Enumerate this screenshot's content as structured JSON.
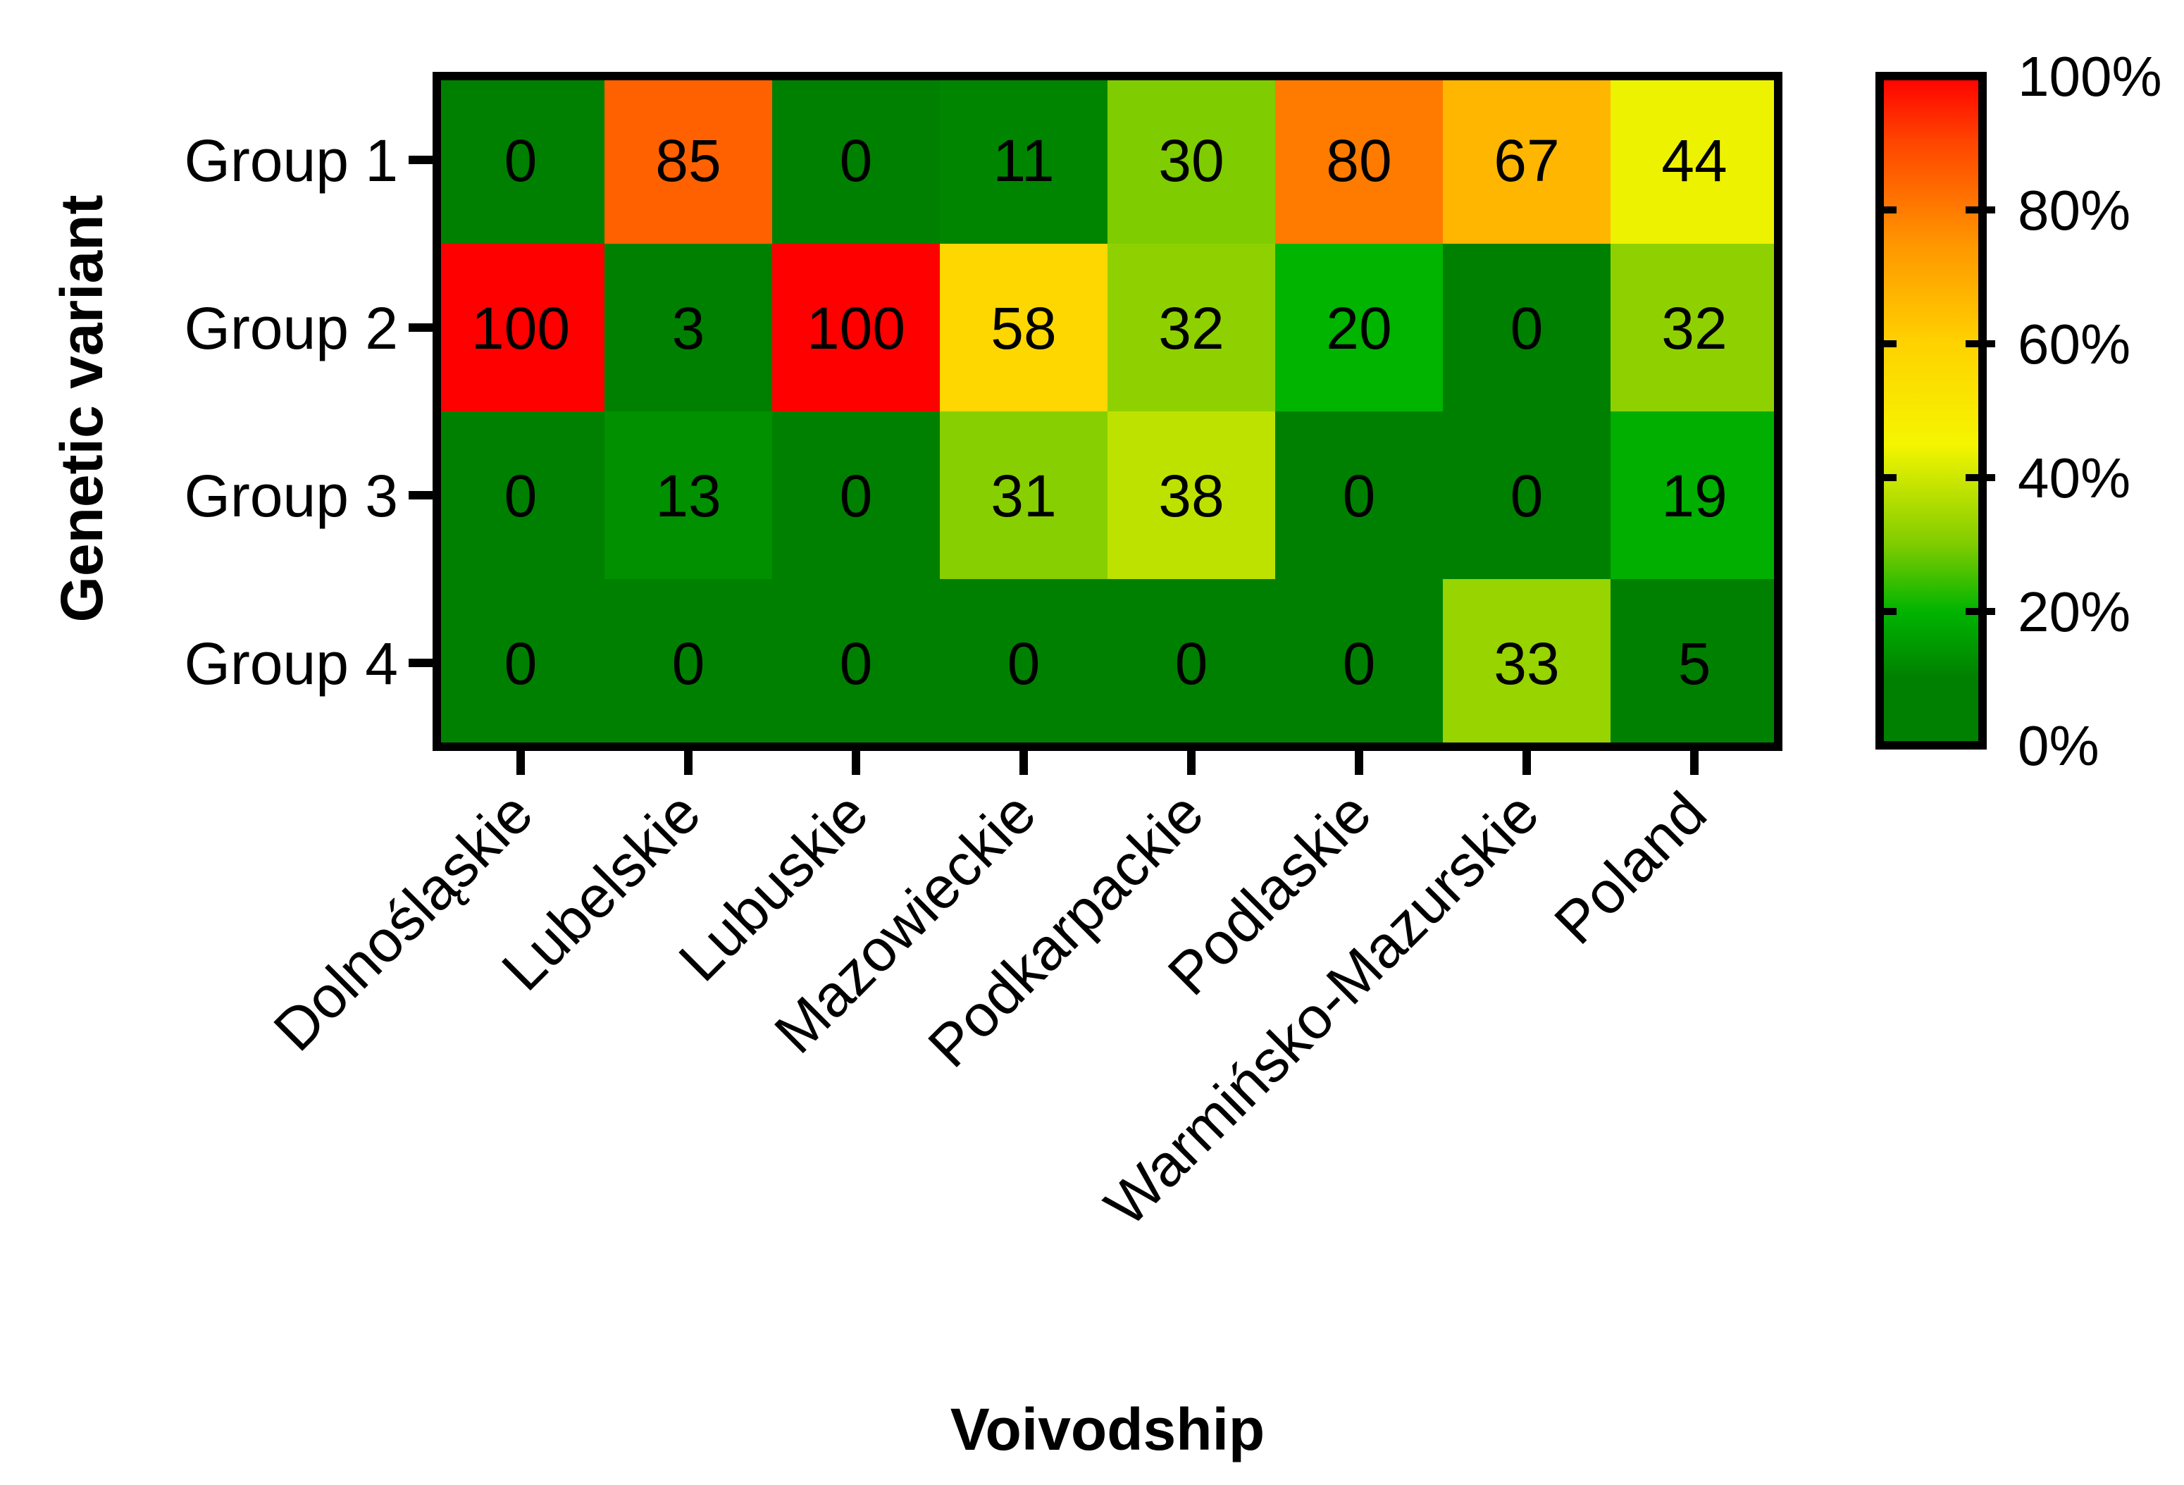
{
  "chart_data": {
    "type": "heatmap",
    "xlabel": "Voivodship",
    "ylabel": "Genetic variant",
    "x_categories": [
      "Dolnośląskie",
      "Lubelskie",
      "Lubuskie",
      "Mazowieckie",
      "Podkarpackie",
      "Podlaskie",
      "Warmińsko-Mazurskie",
      "Poland"
    ],
    "y_categories": [
      "Group 1",
      "Group 2",
      "Group 3",
      "Group 4"
    ],
    "values": [
      [
        0,
        85,
        0,
        11,
        30,
        80,
        67,
        44
      ],
      [
        100,
        3,
        100,
        58,
        32,
        20,
        0,
        32
      ],
      [
        0,
        13,
        0,
        31,
        38,
        0,
        0,
        19
      ],
      [
        0,
        0,
        0,
        0,
        0,
        0,
        33,
        5
      ]
    ],
    "color_range": [
      0,
      100
    ],
    "colorbar": {
      "ticks": [
        "0%",
        "20%",
        "40%",
        "60%",
        "80%",
        "100%"
      ],
      "stops": [
        {
          "value": 0,
          "color": "#008000"
        },
        {
          "value": 10,
          "color": "#008000"
        },
        {
          "value": 20,
          "color": "#00b400"
        },
        {
          "value": 30,
          "color": "#7fcc00"
        },
        {
          "value": 45,
          "color": "#f5f500"
        },
        {
          "value": 60,
          "color": "#ffd200"
        },
        {
          "value": 75,
          "color": "#ff9600"
        },
        {
          "value": 90,
          "color": "#ff4600"
        },
        {
          "value": 100,
          "color": "#ff0000"
        }
      ]
    }
  }
}
